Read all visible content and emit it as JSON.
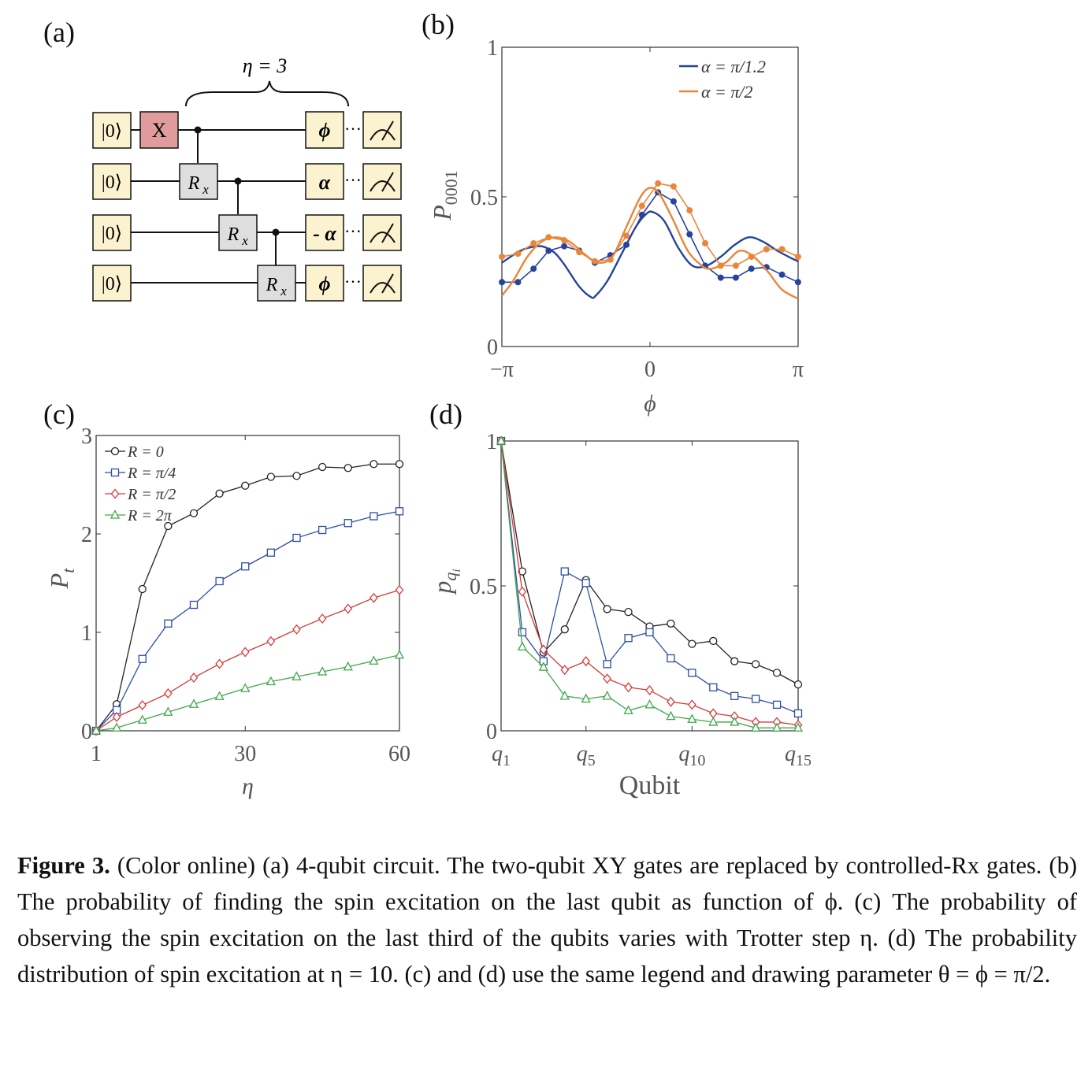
{
  "panels": {
    "a": "(a)",
    "b": "(b)",
    "c": "(c)",
    "d": "(d)"
  },
  "circuit": {
    "brace_label": "η = 3",
    "kets": [
      "|0⟩",
      "|0⟩",
      "|0⟩",
      "|0⟩"
    ],
    "x_gate": "X",
    "rx_gates": [
      "Rx",
      "Rx",
      "Rx"
    ],
    "rx_main": "R",
    "rx_sub": "x",
    "phase_gates": [
      "ϕ",
      "α",
      "- α",
      "ϕ"
    ],
    "dots": "···",
    "colors": {
      "ket": "#fbf3cf",
      "x_gate": "#e09c9c",
      "rx_gate": "#dedede"
    }
  },
  "chart_data": [
    {
      "id": "b",
      "type": "line",
      "xlabel": "ϕ",
      "ylabel_main": "P",
      "ylabel_sub": "0001",
      "xlim": [
        -3.14159,
        3.14159
      ],
      "ylim": [
        0,
        1
      ],
      "xticks": [
        {
          "v": -3.14159,
          "label": "−π"
        },
        {
          "v": 0,
          "label": "0"
        },
        {
          "v": 3.14159,
          "label": "π"
        }
      ],
      "yticks": [
        {
          "v": 0,
          "label": "0"
        },
        {
          "v": 0.5,
          "label": "0.5"
        },
        {
          "v": 1,
          "label": "1"
        }
      ],
      "legend_position": "top-right",
      "series": [
        {
          "name": "α = π/1.2",
          "color": "#27439b",
          "curve_x": [
            -3.14,
            -2.75,
            -2.4,
            -2.2,
            -2.0,
            -1.8,
            -1.5,
            -1.25,
            -1.15,
            -0.9,
            -0.6,
            -0.3,
            -0.1,
            0.05,
            0.3,
            0.6,
            0.9,
            1.2,
            1.5,
            1.8,
            2.1,
            2.4,
            2.7,
            3.0,
            3.14
          ],
          "curve_y": [
            0.28,
            0.32,
            0.335,
            0.33,
            0.31,
            0.27,
            0.2,
            0.165,
            0.17,
            0.22,
            0.31,
            0.4,
            0.44,
            0.45,
            0.42,
            0.33,
            0.27,
            0.27,
            0.3,
            0.34,
            0.365,
            0.35,
            0.32,
            0.295,
            0.285
          ],
          "points_x": [
            -3.14,
            -2.8,
            -2.47,
            -2.15,
            -1.82,
            -1.5,
            -1.17,
            -0.84,
            -0.5,
            -0.17,
            0.17,
            0.5,
            0.84,
            1.17,
            1.5,
            1.82,
            2.15,
            2.47,
            2.8,
            3.14
          ],
          "points_y": [
            0.215,
            0.215,
            0.26,
            0.32,
            0.335,
            0.32,
            0.28,
            0.305,
            0.34,
            0.44,
            0.515,
            0.485,
            0.375,
            0.27,
            0.23,
            0.23,
            0.26,
            0.265,
            0.24,
            0.215
          ]
        },
        {
          "name": "α = π/2",
          "color": "#e8863a",
          "curve_x": [
            -3.14,
            -2.9,
            -2.6,
            -2.3,
            -2.0,
            -1.7,
            -1.4,
            -1.1,
            -0.8,
            -0.5,
            -0.2,
            0.0,
            0.2,
            0.5,
            0.8,
            1.1,
            1.3,
            1.6,
            1.9,
            2.2,
            2.5,
            2.8,
            3.14
          ],
          "curve_y": [
            0.17,
            0.22,
            0.3,
            0.35,
            0.365,
            0.35,
            0.31,
            0.28,
            0.3,
            0.4,
            0.5,
            0.53,
            0.51,
            0.42,
            0.32,
            0.27,
            0.26,
            0.28,
            0.32,
            0.3,
            0.25,
            0.19,
            0.16
          ],
          "points_x": [
            -3.14,
            -2.8,
            -2.47,
            -2.15,
            -1.82,
            -1.5,
            -1.17,
            -0.84,
            -0.5,
            -0.17,
            0.17,
            0.5,
            0.84,
            1.17,
            1.5,
            1.82,
            2.15,
            2.47,
            2.8,
            3.14
          ],
          "points_y": [
            0.3,
            0.31,
            0.345,
            0.365,
            0.355,
            0.315,
            0.285,
            0.29,
            0.37,
            0.47,
            0.545,
            0.535,
            0.455,
            0.345,
            0.27,
            0.27,
            0.3,
            0.325,
            0.325,
            0.3
          ]
        }
      ]
    },
    {
      "id": "c",
      "type": "line",
      "xlabel": "η",
      "ylabel_main": "P",
      "ylabel_sub": "t",
      "xlim": [
        1,
        60
      ],
      "ylim": [
        0,
        3
      ],
      "xticks": [
        {
          "v": 1,
          "label": "1"
        },
        {
          "v": 30,
          "label": "30"
        },
        {
          "v": 60,
          "label": "60"
        }
      ],
      "yticks": [
        {
          "v": 0,
          "label": "0"
        },
        {
          "v": 1,
          "label": "1"
        },
        {
          "v": 2,
          "label": "2"
        },
        {
          "v": 3,
          "label": "3"
        }
      ],
      "legend_position": "top-left",
      "x": [
        1,
        5,
        10,
        15,
        20,
        25,
        30,
        35,
        40,
        45,
        50,
        55,
        60
      ],
      "series": [
        {
          "name": "R = 0",
          "color": "#222222",
          "marker": "circle",
          "values": [
            0,
            0.27,
            1.44,
            2.08,
            2.21,
            2.41,
            2.49,
            2.58,
            2.59,
            2.68,
            2.67,
            2.71,
            2.71
          ]
        },
        {
          "name": "R = π/4",
          "color": "#2e4ea3",
          "marker": "square",
          "values": [
            0,
            0.21,
            0.73,
            1.09,
            1.28,
            1.52,
            1.67,
            1.81,
            1.96,
            2.04,
            2.11,
            2.18,
            2.23
          ]
        },
        {
          "name": "R = π/2",
          "color": "#d53b3b",
          "marker": "diamond",
          "values": [
            0,
            0.14,
            0.26,
            0.38,
            0.54,
            0.68,
            0.8,
            0.91,
            1.03,
            1.14,
            1.24,
            1.35,
            1.43
          ]
        },
        {
          "name": "R = 2π",
          "color": "#3fa64a",
          "marker": "triangle",
          "values": [
            0,
            0.03,
            0.11,
            0.19,
            0.27,
            0.35,
            0.43,
            0.5,
            0.55,
            0.6,
            0.65,
            0.71,
            0.77
          ]
        }
      ]
    },
    {
      "id": "d",
      "type": "line",
      "xlabel": "Qubit",
      "ylabel_main": "p",
      "ylabel_sub": "q",
      "ylabel_subsub": "i",
      "xlim": [
        1,
        15
      ],
      "ylim": [
        0,
        1
      ],
      "xticks": [
        {
          "v": 1,
          "label": "q",
          "sub": "1"
        },
        {
          "v": 5,
          "label": "q",
          "sub": "5"
        },
        {
          "v": 10,
          "label": "q",
          "sub": "10"
        },
        {
          "v": 15,
          "label": "q",
          "sub": "15"
        }
      ],
      "yticks": [
        {
          "v": 0,
          "label": "0"
        },
        {
          "v": 0.5,
          "label": "0.5"
        },
        {
          "v": 1,
          "label": "1"
        }
      ],
      "x": [
        1,
        2,
        3,
        4,
        5,
        6,
        7,
        8,
        9,
        10,
        11,
        12,
        13,
        14,
        15
      ],
      "series": [
        {
          "name": "R = 0",
          "color": "#222222",
          "marker": "circle",
          "values": [
            1.0,
            0.55,
            0.27,
            0.35,
            0.52,
            0.42,
            0.41,
            0.36,
            0.37,
            0.3,
            0.31,
            0.24,
            0.23,
            0.2,
            0.16
          ]
        },
        {
          "name": "R = π/4",
          "color": "#2e4ea3",
          "marker": "square",
          "values": [
            1.0,
            0.34,
            0.24,
            0.55,
            0.51,
            0.23,
            0.32,
            0.34,
            0.25,
            0.2,
            0.15,
            0.12,
            0.11,
            0.09,
            0.06
          ]
        },
        {
          "name": "R = π/2",
          "color": "#d53b3b",
          "marker": "diamond",
          "values": [
            1.0,
            0.48,
            0.28,
            0.21,
            0.24,
            0.18,
            0.15,
            0.14,
            0.1,
            0.09,
            0.06,
            0.05,
            0.03,
            0.03,
            0.02
          ]
        },
        {
          "name": "R = 2π",
          "color": "#3fa64a",
          "marker": "triangle",
          "values": [
            1.0,
            0.29,
            0.22,
            0.12,
            0.11,
            0.12,
            0.07,
            0.09,
            0.05,
            0.04,
            0.03,
            0.03,
            0.01,
            0.01,
            0.01
          ]
        }
      ]
    }
  ],
  "caption": {
    "label": "Figure 3.",
    "text": "(Color online) (a) 4-qubit circuit.  The two-qubit XY gates are replaced by controlled-Rx gates.  (b) The probability of finding the spin excitation on the last qubit as function of ϕ.  (c) The probability of observing the spin excitation on the last third of the qubits varies with Trotter step η.  (d) The probability distribution of spin excitation at η = 10.  (c) and (d) use the same legend and drawing parameter θ = ϕ = π/2."
  }
}
